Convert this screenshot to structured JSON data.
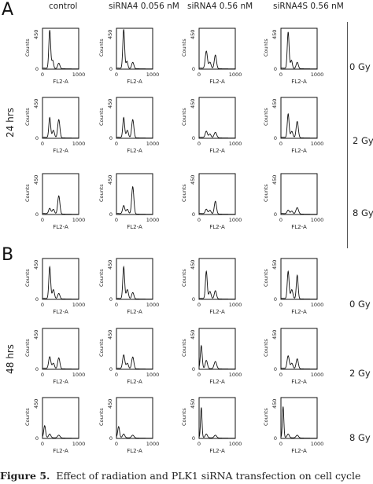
{
  "figure": {
    "panels": [
      {
        "letter": "A",
        "time_label": "24 hrs"
      },
      {
        "letter": "B",
        "time_label": "48 hrs"
      }
    ],
    "columns": [
      "control",
      "siRNA4 0.056 nM",
      "siRNA4 0.56 nM",
      "siRNA4S 0.56 nM"
    ],
    "doses": [
      "0 Gy",
      "2 Gy",
      "8 Gy"
    ],
    "caption_bold": "Figure 5.",
    "caption_text": "Effect of radiation and PLK1 siRNA transfection on cell cycle"
  },
  "chart_data": {
    "type": "line",
    "xlabel": "FL2-A",
    "ylabel": "Counts",
    "xlim": [
      0,
      1000
    ],
    "ylim": [
      0,
      450
    ],
    "x_ticks": [
      "0",
      "1000"
    ],
    "y_ticks": [
      "0",
      "450"
    ],
    "panels": [
      {
        "time": "24 hrs",
        "rows": [
          {
            "dose": "0 Gy",
            "plots": [
              {
                "column": "control",
                "peaks": [
                  [
                    200,
                    420,
                    25
                  ],
                  [
                    280,
                    90,
                    25
                  ],
                  [
                    450,
                    60,
                    30
                  ]
                ]
              },
              {
                "column": "siRNA4 0.056 nM",
                "peaks": [
                  [
                    200,
                    430,
                    25
                  ],
                  [
                    290,
                    80,
                    25
                  ],
                  [
                    450,
                    70,
                    30
                  ]
                ]
              },
              {
                "column": "siRNA4 0.56 nM",
                "peaks": [
                  [
                    200,
                    190,
                    30
                  ],
                  [
                    300,
                    70,
                    30
                  ],
                  [
                    450,
                    150,
                    30
                  ]
                ]
              },
              {
                "column": "siRNA4S 0.56 nM",
                "peaks": [
                  [
                    200,
                    400,
                    25
                  ],
                  [
                    290,
                    90,
                    25
                  ],
                  [
                    450,
                    70,
                    30
                  ]
                ]
              }
            ]
          },
          {
            "dose": "2 Gy",
            "plots": [
              {
                "column": "control",
                "peaks": [
                  [
                    200,
                    220,
                    25
                  ],
                  [
                    300,
                    80,
                    30
                  ],
                  [
                    450,
                    200,
                    30
                  ]
                ]
              },
              {
                "column": "siRNA4 0.056 nM",
                "peaks": [
                  [
                    200,
                    220,
                    25
                  ],
                  [
                    300,
                    80,
                    30
                  ],
                  [
                    450,
                    200,
                    30
                  ]
                ]
              },
              {
                "column": "siRNA4 0.56 nM",
                "peaks": [
                  [
                    200,
                    70,
                    30
                  ],
                  [
                    300,
                    40,
                    30
                  ],
                  [
                    450,
                    60,
                    35
                  ]
                ]
              },
              {
                "column": "siRNA4S 0.56 nM",
                "peaks": [
                  [
                    200,
                    260,
                    25
                  ],
                  [
                    300,
                    70,
                    30
                  ],
                  [
                    450,
                    180,
                    30
                  ]
                ]
              }
            ]
          },
          {
            "dose": "8 Gy",
            "plots": [
              {
                "column": "control",
                "peaks": [
                  [
                    200,
                    60,
                    30
                  ],
                  [
                    300,
                    50,
                    30
                  ],
                  [
                    450,
                    200,
                    30
                  ]
                ]
              },
              {
                "column": "siRNA4 0.056 nM",
                "peaks": [
                  [
                    200,
                    90,
                    30
                  ],
                  [
                    300,
                    50,
                    30
                  ],
                  [
                    450,
                    300,
                    30
                  ]
                ]
              },
              {
                "column": "siRNA4 0.56 nM",
                "peaks": [
                  [
                    200,
                    50,
                    30
                  ],
                  [
                    300,
                    40,
                    30
                  ],
                  [
                    450,
                    140,
                    30
                  ]
                ]
              },
              {
                "column": "siRNA4S 0.56 nM",
                "peaks": [
                  [
                    200,
                    40,
                    30
                  ],
                  [
                    300,
                    30,
                    30
                  ],
                  [
                    450,
                    70,
                    35
                  ]
                ]
              }
            ]
          }
        ]
      },
      {
        "time": "48 hrs",
        "rows": [
          {
            "dose": "0 Gy",
            "plots": [
              {
                "column": "control",
                "peaks": [
                  [
                    200,
                    350,
                    25
                  ],
                  [
                    300,
                    100,
                    30
                  ],
                  [
                    450,
                    60,
                    30
                  ]
                ]
              },
              {
                "column": "siRNA4 0.056 nM",
                "peaks": [
                  [
                    200,
                    350,
                    25
                  ],
                  [
                    300,
                    100,
                    30
                  ],
                  [
                    450,
                    70,
                    30
                  ]
                ]
              },
              {
                "column": "siRNA4 0.56 nM",
                "peaks": [
                  [
                    200,
                    300,
                    25
                  ],
                  [
                    300,
                    80,
                    30
                  ],
                  [
                    450,
                    90,
                    30
                  ]
                ]
              },
              {
                "column": "siRNA4S 0.56 nM",
                "peaks": [
                  [
                    200,
                    300,
                    25
                  ],
                  [
                    300,
                    100,
                    30
                  ],
                  [
                    450,
                    260,
                    25
                  ]
                ]
              }
            ]
          },
          {
            "dose": "2 Gy",
            "plots": [
              {
                "column": "control",
                "peaks": [
                  [
                    200,
                    130,
                    30
                  ],
                  [
                    300,
                    60,
                    30
                  ],
                  [
                    450,
                    120,
                    30
                  ]
                ]
              },
              {
                "column": "siRNA4 0.056 nM",
                "peaks": [
                  [
                    200,
                    150,
                    30
                  ],
                  [
                    300,
                    60,
                    30
                  ],
                  [
                    450,
                    130,
                    30
                  ]
                ]
              },
              {
                "column": "siRNA4 0.56 nM",
                "peaks": [
                  [
                    60,
                    250,
                    25
                  ],
                  [
                    200,
                    90,
                    30
                  ],
                  [
                    450,
                    80,
                    35
                  ]
                ]
              },
              {
                "column": "siRNA4S 0.56 nM",
                "peaks": [
                  [
                    200,
                    140,
                    30
                  ],
                  [
                    300,
                    60,
                    30
                  ],
                  [
                    450,
                    110,
                    30
                  ]
                ]
              }
            ]
          },
          {
            "dose": "8 Gy",
            "plots": [
              {
                "column": "control",
                "peaks": [
                  [
                    60,
                    130,
                    25
                  ],
                  [
                    200,
                    40,
                    30
                  ],
                  [
                    450,
                    30,
                    35
                  ]
                ]
              },
              {
                "column": "siRNA4 0.056 nM",
                "peaks": [
                  [
                    60,
                    120,
                    25
                  ],
                  [
                    200,
                    40,
                    30
                  ],
                  [
                    450,
                    30,
                    35
                  ]
                ]
              },
              {
                "column": "siRNA4 0.56 nM",
                "peaks": [
                  [
                    60,
                    330,
                    20
                  ],
                  [
                    200,
                    40,
                    30
                  ],
                  [
                    450,
                    30,
                    35
                  ]
                ]
              },
              {
                "column": "siRNA4S 0.56 nM",
                "peaks": [
                  [
                    60,
                    340,
                    20
                  ],
                  [
                    200,
                    40,
                    30
                  ],
                  [
                    450,
                    30,
                    35
                  ]
                ]
              }
            ]
          }
        ]
      }
    ]
  }
}
